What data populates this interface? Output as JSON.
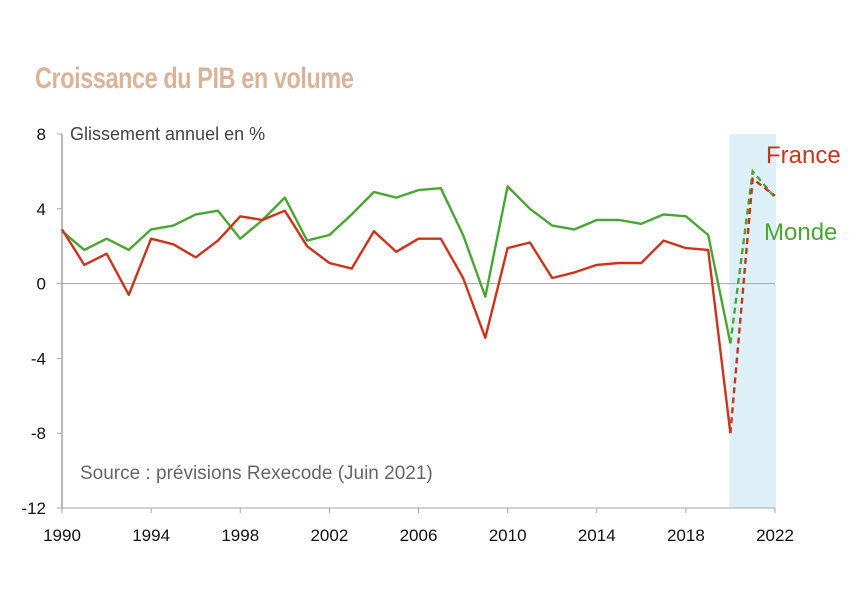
{
  "chart_data": {
    "type": "line",
    "title": "Croissance du PIB en volume",
    "ylabel": "Glissement annuel en %",
    "annotation": "Source : prévisions Rexecode (Juin 2021)",
    "ylim": [
      -12,
      8
    ],
    "yticks": [
      8,
      4,
      0,
      -4,
      -8,
      -12
    ],
    "xlim": [
      1990,
      2022
    ],
    "xticks": [
      1990,
      1994,
      1998,
      2002,
      2006,
      2010,
      2014,
      2018,
      2022
    ],
    "forecast_start": 2020,
    "forecast_band": [
      2020,
      2022
    ],
    "forecast_band_color": "#ddf0f8",
    "x": [
      1990,
      1991,
      1992,
      1993,
      1994,
      1995,
      1996,
      1997,
      1998,
      1999,
      2000,
      2001,
      2002,
      2003,
      2004,
      2005,
      2006,
      2007,
      2008,
      2009,
      2010,
      2011,
      2012,
      2013,
      2014,
      2015,
      2016,
      2017,
      2018,
      2019,
      2020,
      2021,
      2022
    ],
    "series": [
      {
        "name": "Monde",
        "color": "#4aa535",
        "values": [
          2.8,
          1.8,
          2.4,
          1.8,
          2.9,
          3.1,
          3.7,
          3.9,
          2.4,
          3.4,
          4.6,
          2.3,
          2.6,
          3.7,
          4.9,
          4.6,
          5.0,
          5.1,
          2.6,
          -0.7,
          5.2,
          4.0,
          3.1,
          2.9,
          3.4,
          3.4,
          3.2,
          3.7,
          3.6,
          2.6,
          -3.2,
          6.0,
          4.6
        ]
      },
      {
        "name": "France",
        "color": "#c8341c",
        "values": [
          2.9,
          1.0,
          1.6,
          -0.6,
          2.4,
          2.1,
          1.4,
          2.3,
          3.6,
          3.4,
          3.9,
          2.0,
          1.1,
          0.8,
          2.8,
          1.7,
          2.4,
          2.4,
          0.3,
          -2.9,
          1.9,
          2.2,
          0.3,
          0.6,
          1.0,
          1.1,
          1.1,
          2.3,
          1.9,
          1.8,
          -8.0,
          5.6,
          4.7
        ]
      }
    ]
  }
}
